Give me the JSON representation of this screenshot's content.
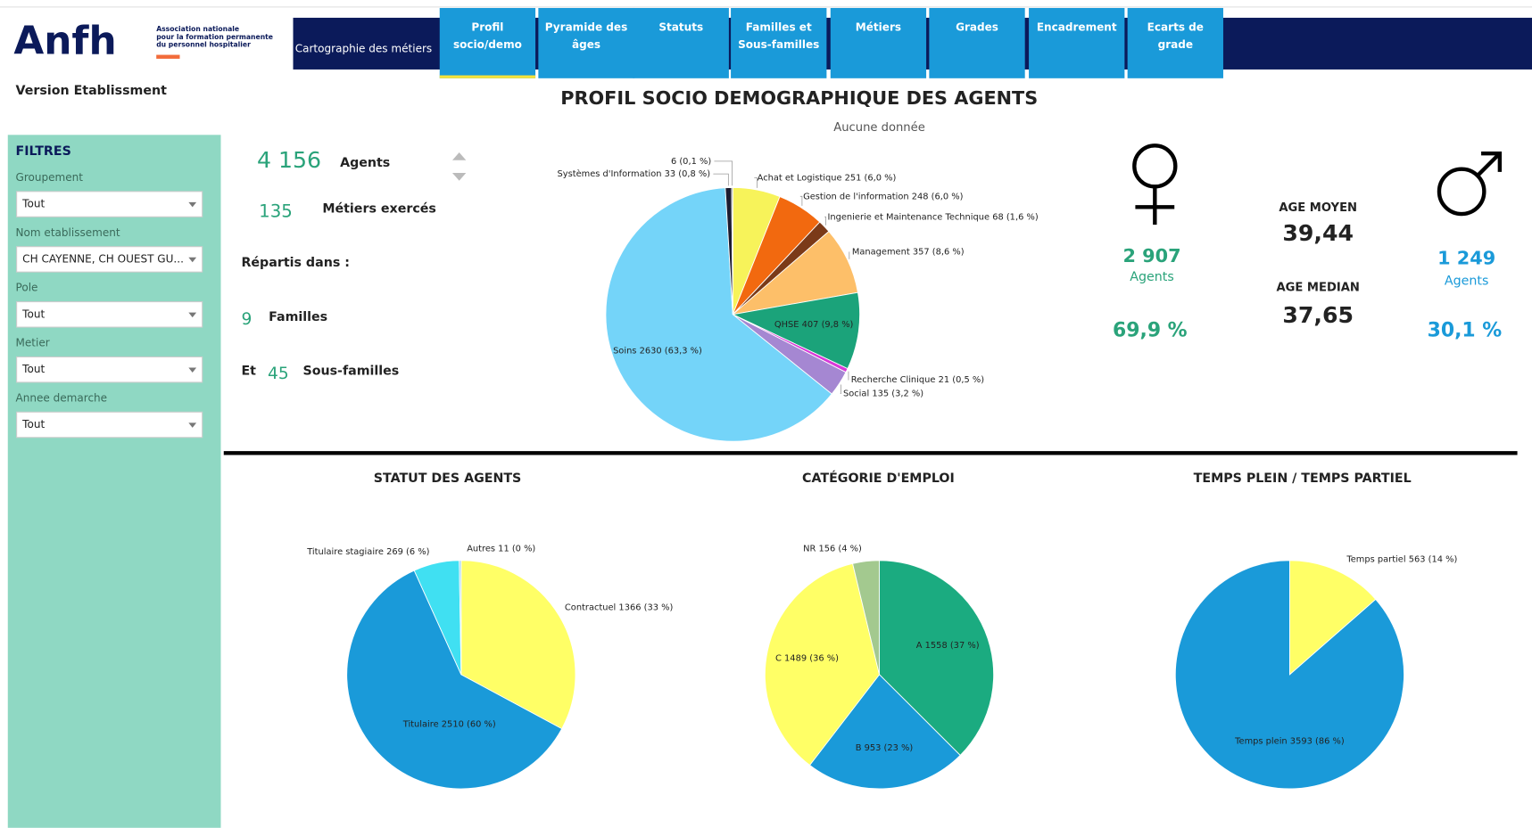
{
  "header": {
    "logo": "Anfh",
    "logo_subtitle": [
      "Association nationale",
      "pour la formation permanente",
      "du personnel hospitalier"
    ],
    "version": "Version Etablissment",
    "title": "PROFIL SOCIO DEMOGRAPHIQUE DES AGENTS",
    "note": "Aucune donnée"
  },
  "nav": {
    "section": "Cartographie des métiers",
    "tabs": [
      [
        "Profil",
        "socio/demo"
      ],
      [
        "Pyramide des",
        "âges"
      ],
      [
        "Statuts"
      ],
      [
        "Familles et",
        "Sous-familles"
      ],
      [
        "Métiers"
      ],
      [
        "Grades"
      ],
      [
        "Encadrement"
      ],
      [
        "Ecarts de",
        "grade"
      ]
    ]
  },
  "filters": {
    "title": "FILTRES",
    "items": [
      {
        "label": "Groupement",
        "value": "Tout"
      },
      {
        "label": "Nom etablissement",
        "value": "CH CAYENNE, CH OUEST GU..."
      },
      {
        "label": "Pole",
        "value": "Tout"
      },
      {
        "label": "Metier",
        "value": "Tout"
      },
      {
        "label": "Annee demarche",
        "value": "Tout"
      }
    ]
  },
  "summary": {
    "agents": {
      "value": "4 156",
      "label": "Agents"
    },
    "metiers": {
      "value": "135",
      "label": "Métiers exercés"
    },
    "repartis": "Répartis dans :",
    "familles": {
      "value": "9",
      "label": "Familles"
    },
    "sous_familles": {
      "prefix": "Et",
      "value": "45",
      "label": "Sous-familles"
    }
  },
  "gender": {
    "female": {
      "count": "2 907",
      "label": "Agents",
      "share": "69,9 %"
    },
    "male": {
      "count": "1 249",
      "label": "Agents",
      "share": "30,1 %"
    },
    "age_mean": {
      "label": "AGE MOYEN",
      "value": "39,44"
    },
    "age_median": {
      "label": "AGE MEDIAN",
      "value": "37,65"
    }
  },
  "chart_data": [
    {
      "type": "pie",
      "values": [
        251,
        248,
        68,
        357,
        407,
        21,
        135,
        2630,
        33,
        6
      ],
      "value_labels": [
        "Achat et Logistique 251 (6,0 %)",
        "Gestion de l'information 248 (6,0 %)",
        "Ingenierie et Maintenance Technique 68 (1,6 %)",
        "Management 357 (8,6 %)",
        "QHSE 407 (9,8 %)",
        "Recherche Clinique 21 (0,5 %)",
        "Social 135 (3,2 %)",
        "Soins 2630 (63,3 %)",
        "Systèmes d'Information 33 (0,8 %)",
        "6 (0,1 %)"
      ],
      "colors": [
        "#f7f35a",
        "#f2690f",
        "#7b3a18",
        "#fdbf69",
        "#1ba37a",
        "#d83ad8",
        "#a587d2",
        "#74d4f9",
        "#1c1c30",
        "#555555"
      ]
    },
    {
      "type": "pie",
      "title": "STATUT DES AGENTS",
      "values": [
        1366,
        2510,
        269,
        11
      ],
      "value_labels": [
        "Contractuel 1366 (33 %)",
        "Titulaire 2510 (60 %)",
        "Titulaire stagiaire 269 (6 %)",
        "Autres 11 (0 %)"
      ],
      "colors": [
        "#ffff66",
        "#1a9ad9",
        "#40e0f2",
        "#9ad0f0"
      ]
    },
    {
      "type": "pie",
      "title": "CATÉGORIE D'EMPLOI",
      "values": [
        1558,
        953,
        1489,
        156
      ],
      "value_labels": [
        "A 1558 (37 %)",
        "B 953 (23 %)",
        "C 1489 (36 %)",
        "NR 156 (4 %)"
      ],
      "colors": [
        "#1bab80",
        "#1a9ad9",
        "#ffff66",
        "#a3c98f"
      ]
    },
    {
      "type": "pie",
      "title": "TEMPS PLEIN / TEMPS PARTIEL",
      "values": [
        563,
        3593
      ],
      "value_labels": [
        "Temps partiel 563 (14 %)",
        "Temps plein 3593 (86 %)"
      ],
      "colors": [
        "#ffff66",
        "#1a9ad9"
      ]
    }
  ]
}
